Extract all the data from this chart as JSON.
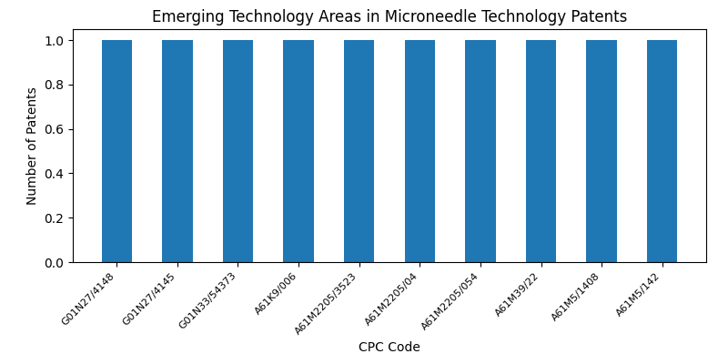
{
  "title": "Emerging Technology Areas in Microneedle Technology Patents",
  "xlabel": "CPC Code",
  "ylabel": "Number of Patents",
  "categories": [
    "G01N27/4148",
    "G01N27/4145",
    "G01N33/54373",
    "A61K9/006",
    "A61M2205/3523",
    "A61M2205/04",
    "A61M2205/054",
    "A61M39/22",
    "A61M5/1408",
    "A61M5/142"
  ],
  "values": [
    1,
    1,
    1,
    1,
    1,
    1,
    1,
    1,
    1,
    1
  ],
  "bar_color": "#1f77b4",
  "bar_width": 0.5,
  "ylim": [
    0,
    1.05
  ],
  "yticks": [
    0.0,
    0.2,
    0.4,
    0.6,
    0.8,
    1.0
  ],
  "figsize": [
    8.0,
    4.0
  ],
  "dpi": 100,
  "title_fontsize": 12,
  "label_fontsize": 10,
  "tick_fontsize": 8
}
